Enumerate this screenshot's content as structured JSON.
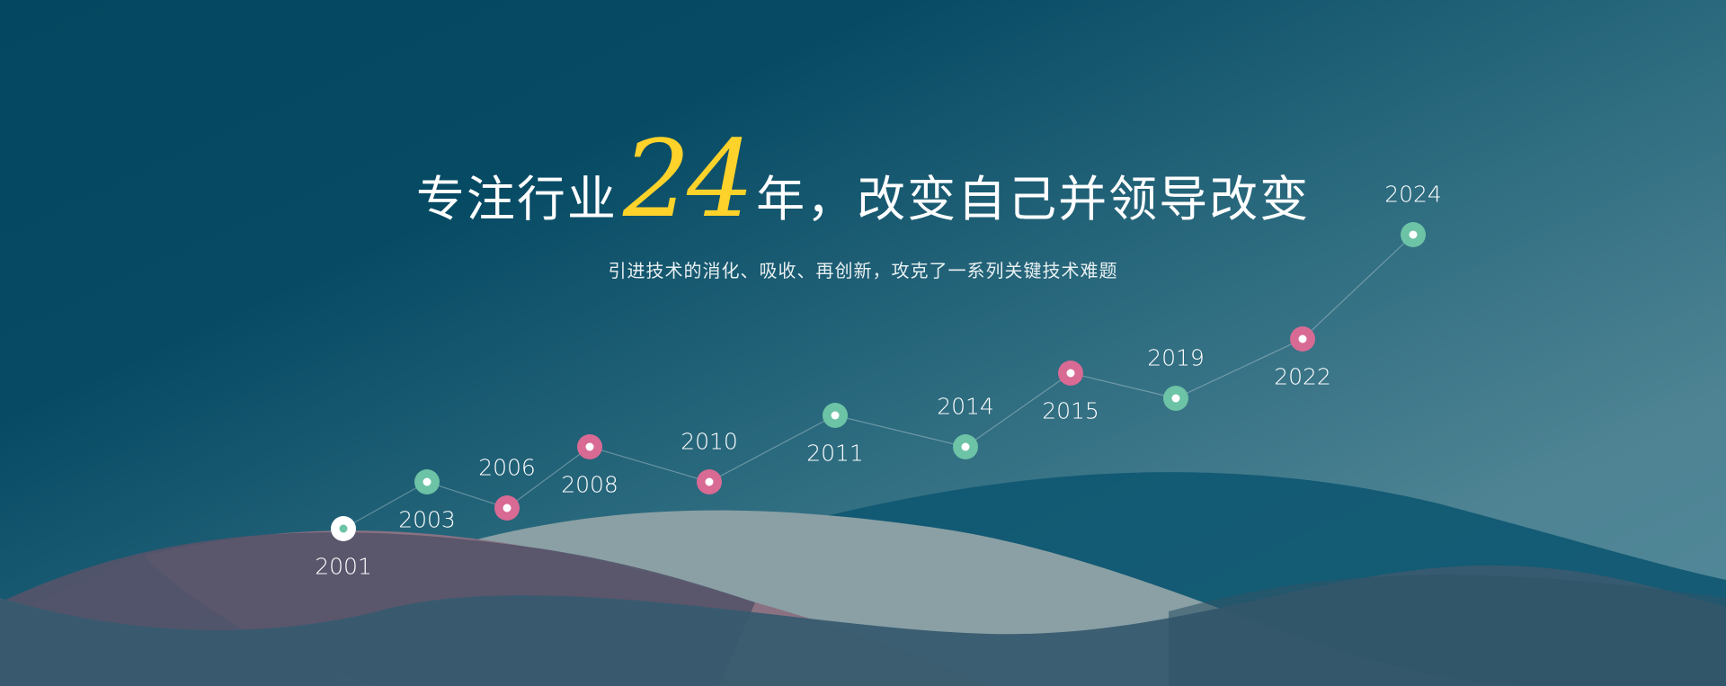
{
  "headline": {
    "before": "专注行业",
    "number": "24",
    "after": "年，改变自己并领导改变"
  },
  "subtitle": "引进技术的消化、吸收、再创新，攻克了一系列关键技术难题",
  "colors": {
    "accent": "#fdd22a",
    "green": "#6cc3a5",
    "pink": "#d86a94",
    "white": "#ffffff"
  },
  "timeline": [
    {
      "year": "2001",
      "color": "white",
      "label": "below"
    },
    {
      "year": "2003",
      "color": "green",
      "label": "below"
    },
    {
      "year": "2006",
      "color": "pink",
      "label": "above"
    },
    {
      "year": "2008",
      "color": "pink",
      "label": "below"
    },
    {
      "year": "2010",
      "color": "pink",
      "label": "above"
    },
    {
      "year": "2011",
      "color": "green",
      "label": "below"
    },
    {
      "year": "2014",
      "color": "green",
      "label": "above"
    },
    {
      "year": "2015",
      "color": "pink",
      "label": "below"
    },
    {
      "year": "2019",
      "color": "green",
      "label": "above"
    },
    {
      "year": "2022",
      "color": "pink",
      "label": "below"
    },
    {
      "year": "2024",
      "color": "green",
      "label": "above"
    }
  ]
}
